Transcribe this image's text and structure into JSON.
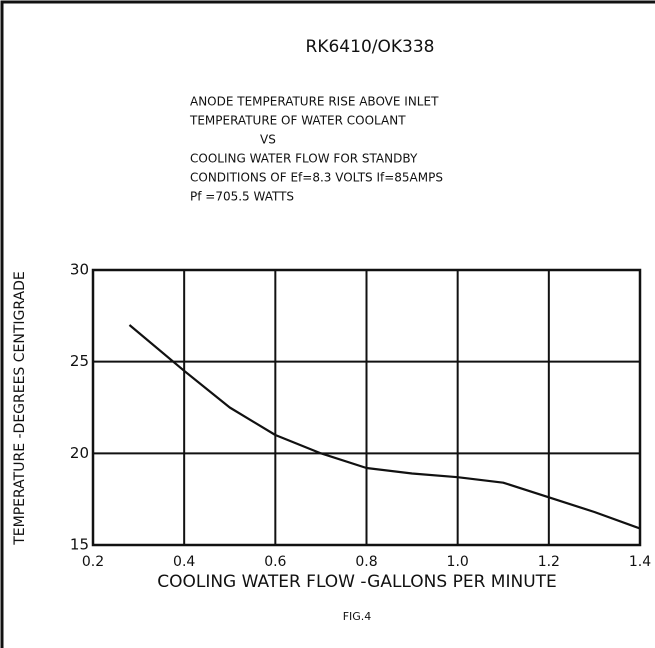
{
  "chart_data": {
    "type": "line",
    "title": "RK6410/OK338",
    "subtitle": [
      "ANODE TEMPERATURE RISE ABOVE INLET",
      "TEMPERATURE OF WATER COOLANT",
      "VS",
      "COOLING WATER FLOW FOR STANDBY",
      "CONDITIONS OF Ef=8.3 VOLTS If=85AMPS",
      "Pf =705.5 WATTS"
    ],
    "x_label": "COOLING WATER FLOW -GALLONS PER MINUTE",
    "y_label": "TEMPERATURE -DEGREES CENTIGRADE",
    "caption": "FIG.4",
    "x": [
      0.28,
      0.4,
      0.5,
      0.6,
      0.7,
      0.8,
      0.9,
      1.0,
      1.1,
      1.2,
      1.3,
      1.4
    ],
    "series": [
      {
        "name": "Temperature rise",
        "color": "#111111",
        "values": [
          27,
          24.5,
          22.5,
          21,
          20,
          19.2,
          18.9,
          18.7,
          18.4,
          17.6,
          16.8,
          15.9
        ]
      }
    ],
    "xlim": [
      0.2,
      1.4
    ],
    "xticks": [
      0.2,
      0.4,
      0.6,
      0.8,
      {
        "value": 1.0,
        "label": "1.0"
      },
      1.2,
      1.4
    ],
    "ylim": [
      15,
      30
    ],
    "yticks": [
      15,
      20,
      25,
      30
    ],
    "grid": true
  }
}
